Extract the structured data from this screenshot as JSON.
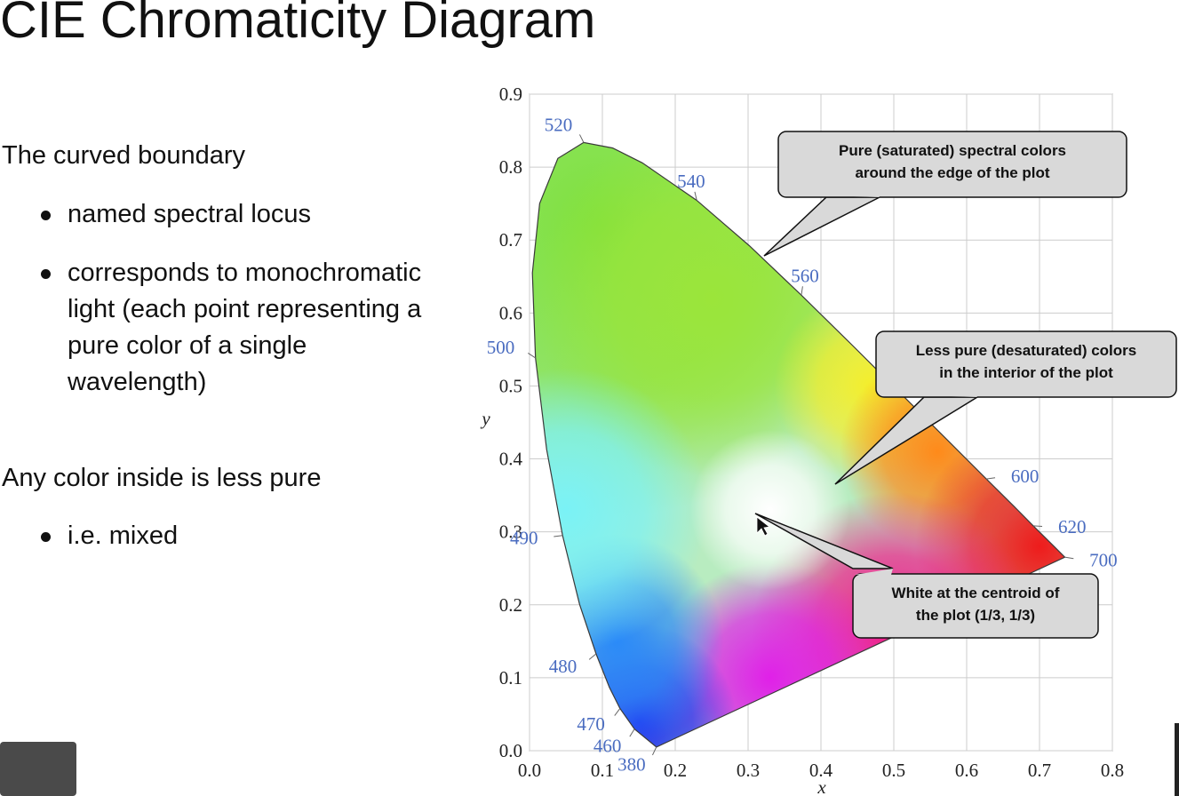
{
  "slide": {
    "title": "CIE Chromaticity Diagram",
    "items": [
      {
        "text": "The curved boundary",
        "level": 0
      },
      {
        "text": "named spectral locus",
        "level": 1
      },
      {
        "text": "corresponds to monochromatic light (each point representing a pure color of a single wavelength)",
        "level": 1
      },
      {
        "text": "Any color inside is less pure",
        "level": 0
      },
      {
        "text": "i.e. mixed",
        "level": 1
      }
    ]
  },
  "chart_data": {
    "type": "line",
    "xlabel": "x",
    "ylabel": "y",
    "xlim": [
      0,
      0.8
    ],
    "ylim": [
      0,
      0.9
    ],
    "xticks": [
      {
        "value": 0,
        "label": "0.0"
      },
      0.1,
      0.2,
      0.3,
      0.4,
      0.5,
      0.6,
      0.7,
      0.8
    ],
    "yticks": [
      {
        "value": 0,
        "label": "0.0"
      },
      0.1,
      0.2,
      0.3,
      0.4,
      0.5,
      0.6,
      0.7,
      0.8,
      0.9
    ],
    "grid": true,
    "series": [
      {
        "color": "#3a3a3a",
        "x": [
          0.1741,
          0.144,
          0.1241,
          0.1096,
          0.0913,
          0.0687,
          0.0454,
          0.0235,
          0.0082,
          0.0039,
          0.0139,
          0.0389,
          0.0743,
          0.1142,
          0.1547,
          0.2296,
          0.3016,
          0.3731,
          0.4441,
          0.5125,
          0.5752,
          0.627,
          0.6658,
          0.6915,
          0.719,
          0.7347
        ],
        "values": [
          0.005,
          0.0297,
          0.0578,
          0.0868,
          0.1327,
          0.2007,
          0.295,
          0.4127,
          0.5384,
          0.6548,
          0.7502,
          0.812,
          0.8338,
          0.8262,
          0.8059,
          0.7543,
          0.6923,
          0.6245,
          0.5547,
          0.4866,
          0.4242,
          0.3725,
          0.334,
          0.3083,
          0.2809,
          0.2653
        ],
        "point_labels": [
          "380",
          "460",
          "470",
          null,
          "480",
          null,
          "490",
          null,
          "500",
          null,
          null,
          null,
          "520",
          null,
          null,
          "540",
          null,
          "560",
          null,
          null,
          null,
          "600",
          null,
          "620",
          null,
          "700"
        ],
        "label_color": "#4a6cc0"
      }
    ],
    "callouts": [
      {
        "lines": [
          "Pure (saturated) spectral colors",
          "around the edge of the plot"
        ]
      },
      {
        "lines": [
          "Less pure (desaturated) colors",
          "in the interior of the plot"
        ]
      },
      {
        "lines": [
          "White at the centroid of",
          "the plot (1/3, 1/3)"
        ]
      }
    ]
  }
}
